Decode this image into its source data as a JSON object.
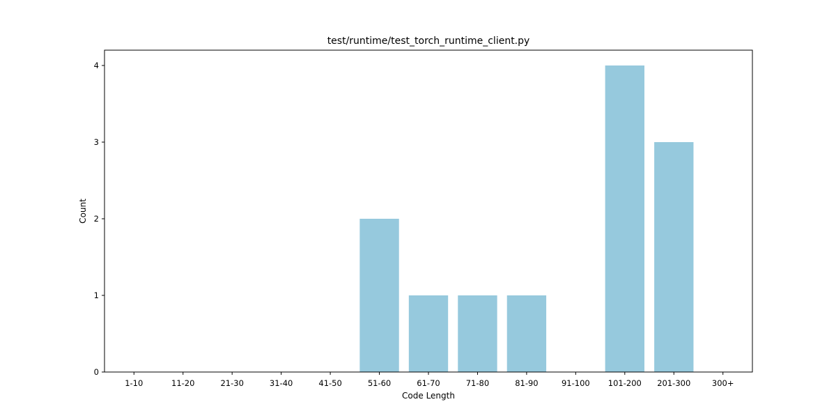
{
  "chart_data": {
    "type": "bar",
    "title": "test/runtime/test_torch_runtime_client.py",
    "xlabel": "Code Length",
    "ylabel": "Count",
    "categories": [
      "1-10",
      "11-20",
      "21-30",
      "31-40",
      "41-50",
      "51-60",
      "61-70",
      "71-80",
      "81-90",
      "91-100",
      "101-200",
      "201-300",
      "300+"
    ],
    "values": [
      0,
      0,
      0,
      0,
      0,
      2,
      1,
      1,
      1,
      0,
      4,
      3,
      0
    ],
    "ylim": [
      0,
      4.2
    ],
    "yticks": [
      0,
      1,
      2,
      3,
      4
    ],
    "grid": false,
    "bar_color": "#96c9dd"
  }
}
